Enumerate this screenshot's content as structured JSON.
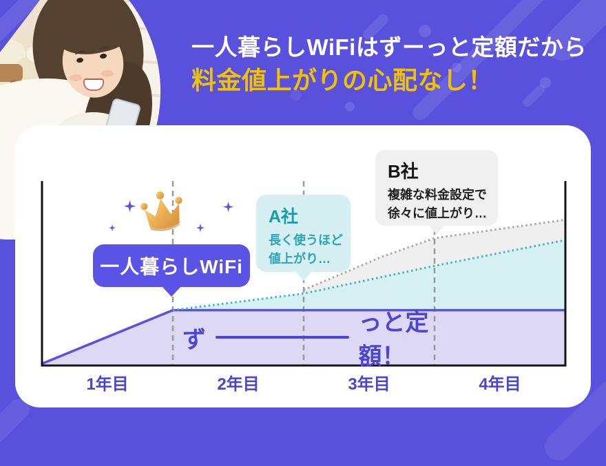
{
  "page": {
    "bg_color": "#5951DC",
    "accent_color": "#5B52E6",
    "highlight_color": "#F0C200"
  },
  "header": {
    "line1": "一人暮らしWiFiはずーっと定額だから",
    "line2": "料金値上がりの心配なし！"
  },
  "chart": {
    "brand_label": "一人暮らしWiFi",
    "flat_prefix": "ず",
    "flat_suffix": "っと定額！",
    "x_labels": [
      "1年目",
      "2年目",
      "3年目",
      "4年目"
    ],
    "bubbles": {
      "a": {
        "title": "A社",
        "line1": "長く使うほど",
        "line2": "値上がり…"
      },
      "b": {
        "title": "B社",
        "line1": "複雑な料金設定で",
        "line2": "徐々に値上がり…"
      }
    }
  },
  "chart_data": {
    "type": "line",
    "title": "",
    "xlabel": "",
    "ylabel": "",
    "x_ticks": [
      "1年目",
      "2年目",
      "3年目",
      "4年目"
    ],
    "xlim": [
      0,
      4
    ],
    "ylim": [
      0,
      100
    ],
    "gridlines_x": [
      1,
      2,
      3
    ],
    "grid_style": "dashed-vertical",
    "legend_position": "bubbles-on-chart",
    "series": [
      {
        "name": "一人暮らしWiFi",
        "annotation": "ずーっと定額！",
        "line_style": "solid",
        "color": "#5B50E1",
        "fill": "#DDD9F5",
        "points": [
          [
            0,
            1
          ],
          [
            1,
            30
          ],
          [
            4,
            30
          ]
        ],
        "fill_base": [
          [
            4,
            0
          ],
          [
            0,
            0
          ]
        ]
      },
      {
        "name": "A社",
        "annotation": "長く使うほど値上がり…",
        "line_style": "dotted",
        "color": "#38B6C6",
        "fill": "#D7F0F4",
        "points": [
          [
            1,
            30
          ],
          [
            2,
            39
          ],
          [
            3,
            54
          ],
          [
            4,
            68
          ]
        ],
        "fill_base": [
          [
            4,
            30
          ],
          [
            1,
            30
          ]
        ]
      },
      {
        "name": "B社",
        "annotation": "複雑な料金設定で徐々に値上がり…",
        "line_style": "dotted",
        "color": "#A8A8A8",
        "fill": "#EFEFEF",
        "points": [
          [
            2,
            41
          ],
          [
            2.6,
            59
          ],
          [
            3,
            69
          ],
          [
            4,
            79
          ]
        ],
        "fill_base": [
          [
            4,
            68
          ],
          [
            3,
            54
          ],
          [
            2,
            39
          ]
        ]
      }
    ]
  }
}
